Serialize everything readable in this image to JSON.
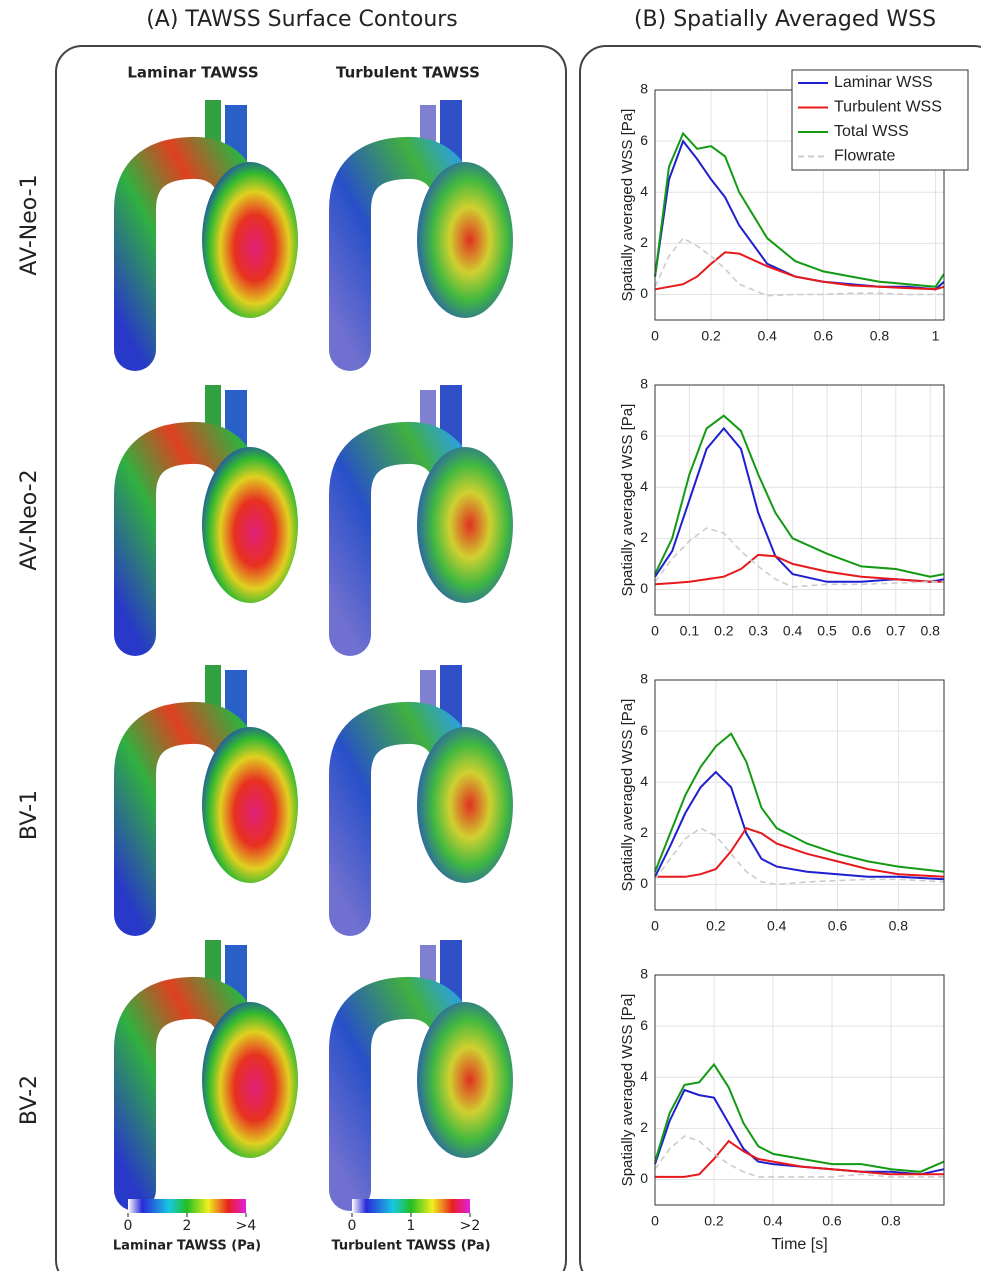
{
  "panel_a": {
    "title": "(A) TAWSS Surface Contours",
    "columns": [
      "Laminar TAWSS",
      "Turbulent TAWSS"
    ],
    "rows": [
      "AV-Neo-1",
      "AV-Neo-2",
      "BV-1",
      "BV-2"
    ],
    "colorbars": [
      {
        "label": "Laminar TAWSS (Pa)",
        "lim": [
          0,
          4
        ],
        "ticks": [
          0,
          2,
          {
            "value": 4,
            "label": ">4"
          }
        ]
      },
      {
        "label": "Turbulent TAWSS (Pa)",
        "lim": [
          0,
          2
        ],
        "ticks": [
          0,
          1,
          {
            "value": 2,
            "label": ">2"
          }
        ]
      }
    ]
  },
  "panel_b": {
    "title": "(B) Spatially Averaged WSS"
  },
  "chart_data": [
    {
      "type": "line",
      "ylabel": "Spatially averaged WSS [Pa]",
      "legend": "upper right",
      "grid": true,
      "x": [
        0,
        0.05,
        0.1,
        0.15,
        0.2,
        0.25,
        0.3,
        0.4,
        0.5,
        0.6,
        0.7,
        0.8,
        0.9,
        1.0,
        1.03
      ],
      "xlim": [
        0,
        1.03
      ],
      "xticks": [
        0,
        0.2,
        0.4,
        0.6,
        0.8,
        1
      ],
      "ylim": [
        -1,
        8
      ],
      "yticks": [
        0,
        2,
        4,
        6,
        8
      ],
      "series": [
        {
          "name": "Laminar WSS",
          "color": "#1f1fcf",
          "values": [
            0.7,
            4.5,
            6.0,
            5.3,
            4.5,
            3.8,
            2.7,
            1.2,
            0.7,
            0.5,
            0.4,
            0.3,
            0.3,
            0.2,
            0.5
          ]
        },
        {
          "name": "Turbulent WSS",
          "color": "#e8191b",
          "values": [
            0.2,
            0.3,
            0.4,
            0.7,
            1.2,
            1.65,
            1.6,
            1.1,
            0.7,
            0.5,
            0.35,
            0.3,
            0.25,
            0.2,
            0.3
          ]
        },
        {
          "name": "Total WSS",
          "color": "#139a13",
          "values": [
            0.7,
            5.0,
            6.3,
            5.7,
            5.8,
            5.4,
            4.0,
            2.2,
            1.3,
            0.9,
            0.7,
            0.5,
            0.4,
            0.3,
            0.8
          ]
        },
        {
          "name": "Flowrate",
          "color": "#cccccc",
          "style": "dashed",
          "values": [
            0.3,
            1.5,
            2.2,
            1.9,
            1.5,
            1.0,
            0.4,
            -0.05,
            0,
            0,
            0.05,
            0.05,
            0,
            0,
            0
          ]
        }
      ]
    },
    {
      "type": "line",
      "ylabel": "Spatially averaged WSS [Pa]",
      "grid": true,
      "x": [
        0,
        0.05,
        0.1,
        0.15,
        0.2,
        0.25,
        0.3,
        0.35,
        0.4,
        0.5,
        0.6,
        0.7,
        0.8,
        0.84
      ],
      "xlim": [
        0,
        0.84
      ],
      "xticks": [
        0,
        0.1,
        0.2,
        0.3,
        0.4,
        0.5,
        0.6,
        0.7,
        0.8
      ],
      "ylim": [
        -1,
        8
      ],
      "yticks": [
        0,
        2,
        4,
        6,
        8
      ],
      "series": [
        {
          "color": "#1f1fcf",
          "values": [
            0.5,
            1.5,
            3.5,
            5.5,
            6.3,
            5.5,
            3.0,
            1.3,
            0.6,
            0.3,
            0.3,
            0.4,
            0.3,
            0.4
          ]
        },
        {
          "color": "#e8191b",
          "values": [
            0.2,
            0.25,
            0.3,
            0.4,
            0.5,
            0.8,
            1.35,
            1.3,
            1.0,
            0.7,
            0.5,
            0.4,
            0.3,
            0.3
          ]
        },
        {
          "color": "#139a13",
          "values": [
            0.6,
            2.0,
            4.5,
            6.3,
            6.8,
            6.2,
            4.5,
            3.0,
            2.0,
            1.4,
            0.9,
            0.8,
            0.5,
            0.6
          ]
        },
        {
          "color": "#cccccc",
          "style": "dashed",
          "values": [
            0.3,
            1.2,
            1.9,
            2.4,
            2.2,
            1.5,
            0.9,
            0.4,
            0.1,
            0.2,
            0.2,
            0.25,
            0.3,
            0.3
          ]
        }
      ]
    },
    {
      "type": "line",
      "ylabel": "Spatially averaged WSS [Pa]",
      "grid": true,
      "x": [
        0,
        0.05,
        0.1,
        0.15,
        0.2,
        0.25,
        0.3,
        0.35,
        0.4,
        0.5,
        0.6,
        0.7,
        0.8,
        0.95
      ],
      "xlim": [
        0,
        0.95
      ],
      "xticks": [
        0,
        0.2,
        0.4,
        0.6,
        0.8
      ],
      "ylim": [
        -1,
        8
      ],
      "yticks": [
        0,
        2,
        4,
        6,
        8
      ],
      "series": [
        {
          "color": "#1f1fcf",
          "values": [
            0.3,
            1.5,
            2.8,
            3.8,
            4.4,
            3.8,
            2.0,
            1.0,
            0.7,
            0.5,
            0.4,
            0.3,
            0.3,
            0.2
          ]
        },
        {
          "color": "#e8191b",
          "values": [
            0.3,
            0.3,
            0.3,
            0.4,
            0.6,
            1.3,
            2.2,
            2.0,
            1.6,
            1.2,
            0.9,
            0.6,
            0.4,
            0.3
          ]
        },
        {
          "color": "#139a13",
          "values": [
            0.5,
            2.0,
            3.5,
            4.6,
            5.4,
            5.9,
            4.8,
            3.0,
            2.2,
            1.6,
            1.2,
            0.9,
            0.7,
            0.5
          ]
        },
        {
          "color": "#cccccc",
          "style": "dashed",
          "values": [
            0.2,
            1.0,
            1.8,
            2.2,
            1.9,
            1.2,
            0.5,
            0.1,
            0,
            0.1,
            0.15,
            0.2,
            0.2,
            0.1
          ]
        }
      ]
    },
    {
      "type": "line",
      "ylabel": "Spatially averaged WSS [Pa]",
      "xlabel": "Time [s]",
      "grid": true,
      "x": [
        0,
        0.05,
        0.1,
        0.15,
        0.2,
        0.25,
        0.3,
        0.35,
        0.4,
        0.5,
        0.6,
        0.7,
        0.8,
        0.9,
        0.98
      ],
      "xlim": [
        0,
        0.98
      ],
      "xticks": [
        0,
        0.2,
        0.4,
        0.6,
        0.8
      ],
      "ylim": [
        -1,
        8
      ],
      "yticks": [
        0,
        2,
        4,
        6,
        8
      ],
      "series": [
        {
          "color": "#1f1fcf",
          "values": [
            0.6,
            2.3,
            3.5,
            3.3,
            3.2,
            2.2,
            1.2,
            0.7,
            0.6,
            0.5,
            0.4,
            0.3,
            0.3,
            0.2,
            0.4
          ]
        },
        {
          "color": "#e8191b",
          "values": [
            0.1,
            0.1,
            0.1,
            0.2,
            0.8,
            1.5,
            1.1,
            0.8,
            0.7,
            0.5,
            0.4,
            0.3,
            0.2,
            0.2,
            0.2
          ]
        },
        {
          "color": "#139a13",
          "values": [
            0.7,
            2.6,
            3.7,
            3.8,
            4.5,
            3.6,
            2.2,
            1.3,
            1.0,
            0.8,
            0.6,
            0.6,
            0.4,
            0.3,
            0.7
          ]
        },
        {
          "color": "#cccccc",
          "style": "dashed",
          "values": [
            0.4,
            1.2,
            1.7,
            1.5,
            1.0,
            0.6,
            0.3,
            0.1,
            0.1,
            0.1,
            0.1,
            0.2,
            0.1,
            0.1,
            0.1
          ]
        }
      ]
    }
  ]
}
